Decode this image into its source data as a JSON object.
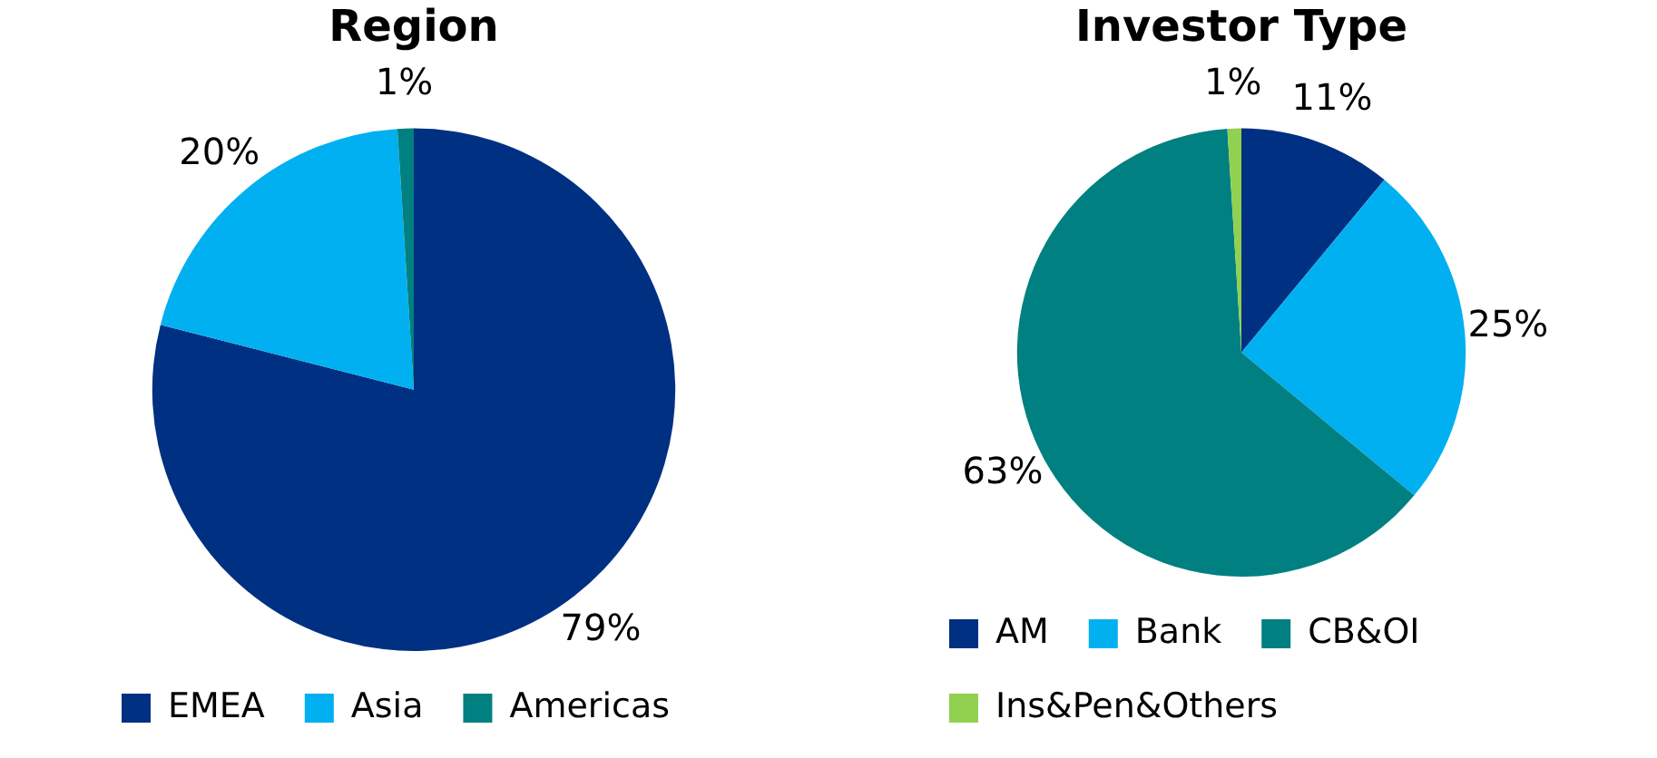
{
  "chart_data": [
    {
      "type": "pie",
      "title": "Region",
      "categories": [
        "EMEA",
        "Asia",
        "Americas"
      ],
      "values": [
        79,
        20,
        1
      ],
      "value_labels": [
        "79%",
        "20%",
        "1%"
      ],
      "colors": [
        "#003082",
        "#00b0f0",
        "#008080"
      ],
      "legend": "bottom"
    },
    {
      "type": "pie",
      "title": "Investor Type",
      "categories": [
        "AM",
        "Bank",
        "CB&OI",
        "Ins&Pen&Others"
      ],
      "values": [
        11,
        25,
        63,
        1
      ],
      "value_labels": [
        "11%",
        "25%",
        "63%",
        "1%"
      ],
      "colors": [
        "#003082",
        "#00b0f0",
        "#008080",
        "#92d050"
      ],
      "legend": "bottom"
    }
  ]
}
